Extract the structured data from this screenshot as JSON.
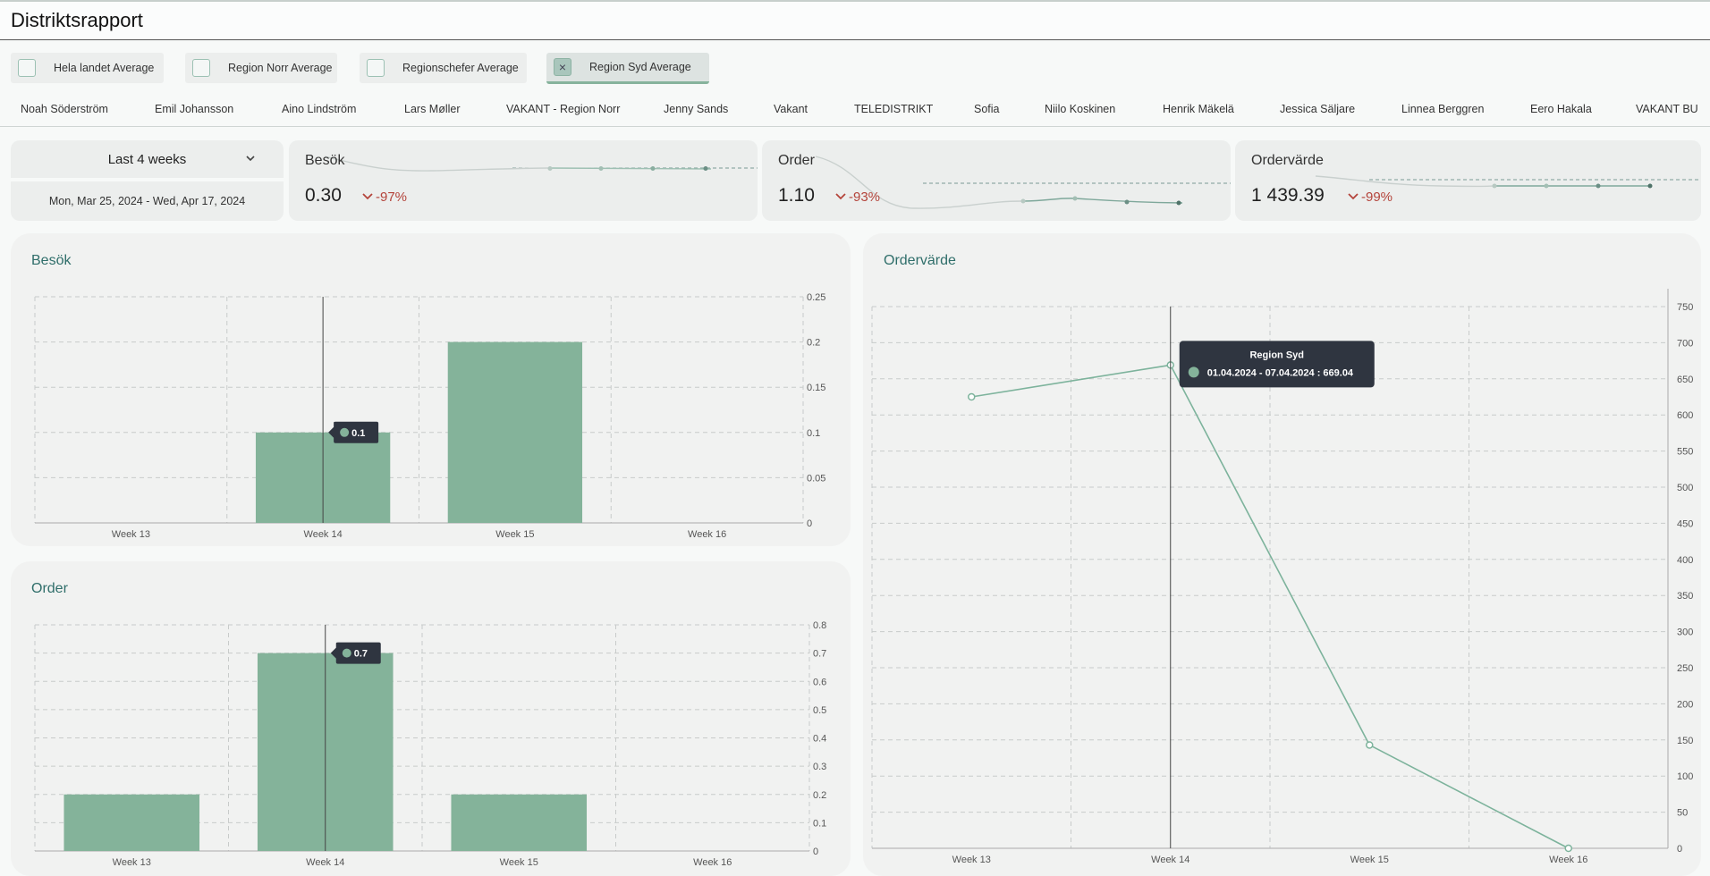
{
  "header": {
    "title": "Distriktsrapport"
  },
  "filters": [
    {
      "label": "Hela landet Average",
      "checked": false
    },
    {
      "label": "Region Norr Average",
      "checked": false
    },
    {
      "label": "Regionschefer Average",
      "checked": false
    },
    {
      "label": "Region Syd Average",
      "checked": true,
      "mark": "×"
    }
  ],
  "people": [
    "Noah Söderström",
    "Emil Johansson",
    "Aino Lindström",
    "Lars Møller",
    "VAKANT - Region Norr",
    "Jenny Sands",
    "Vakant",
    "TELEDISTRIKT",
    "Sofia",
    "Niilo Koskinen",
    "Henrik Mäkelä",
    "Jessica Säljare",
    "Linnea Berggren",
    "Eero Hakala",
    "VAKANT BU"
  ],
  "range": {
    "selected": "Last 4 weeks",
    "dates": "Mon, Mar 25, 2024 - Wed, Apr 17, 2024",
    "icon": "chevron-down-icon"
  },
  "kpis": [
    {
      "title": "Besök",
      "value": "0.30",
      "delta": "-97%"
    },
    {
      "title": "Order",
      "value": "1.10",
      "delta": "-93%"
    },
    {
      "title": "Ordervärde",
      "value": "1 439.39",
      "delta": "-99%"
    }
  ],
  "colors": {
    "accent": "#84b39a",
    "title": "#2f6e6a",
    "negative": "#b4443b",
    "tooltip": "#2f3540"
  },
  "chart_data": [
    {
      "type": "bar",
      "title": "Besök",
      "categories": [
        "Week 13",
        "Week 14",
        "Week 15",
        "Week 16"
      ],
      "values": [
        0,
        0.1,
        0.2,
        0
      ],
      "yticks": [
        "0",
        "0.05",
        "0.1",
        "0.15",
        "0.2",
        "0.25"
      ],
      "ylim": [
        0,
        0.25
      ],
      "tooltip": "0.1",
      "grid": true
    },
    {
      "type": "bar",
      "title": "Order",
      "categories": [
        "Week 13",
        "Week 14",
        "Week 15",
        "Week 16"
      ],
      "values": [
        0.2,
        0.7,
        0.2,
        0
      ],
      "yticks": [
        "0",
        "0.1",
        "0.2",
        "0.3",
        "0.4",
        "0.5",
        "0.6",
        "0.7",
        "0.8"
      ],
      "ylim": [
        0,
        0.8
      ],
      "tooltip": "0.7",
      "grid": true
    },
    {
      "type": "line",
      "title": "Ordervärde",
      "categories": [
        "Week 13",
        "Week 14",
        "Week 15",
        "Week 16"
      ],
      "series": [
        {
          "name": "Region Syd",
          "values": [
            625,
            669.04,
            143,
            0
          ]
        }
      ],
      "yticks": [
        "0",
        "50",
        "100",
        "150",
        "200",
        "250",
        "300",
        "350",
        "400",
        "450",
        "500",
        "550",
        "600",
        "650",
        "700",
        "750"
      ],
      "ylim": [
        0,
        750
      ],
      "tooltip": {
        "title": "Region Syd",
        "text": "01.04.2024 - 07.04.2024 : 669.04"
      },
      "grid": true
    }
  ]
}
